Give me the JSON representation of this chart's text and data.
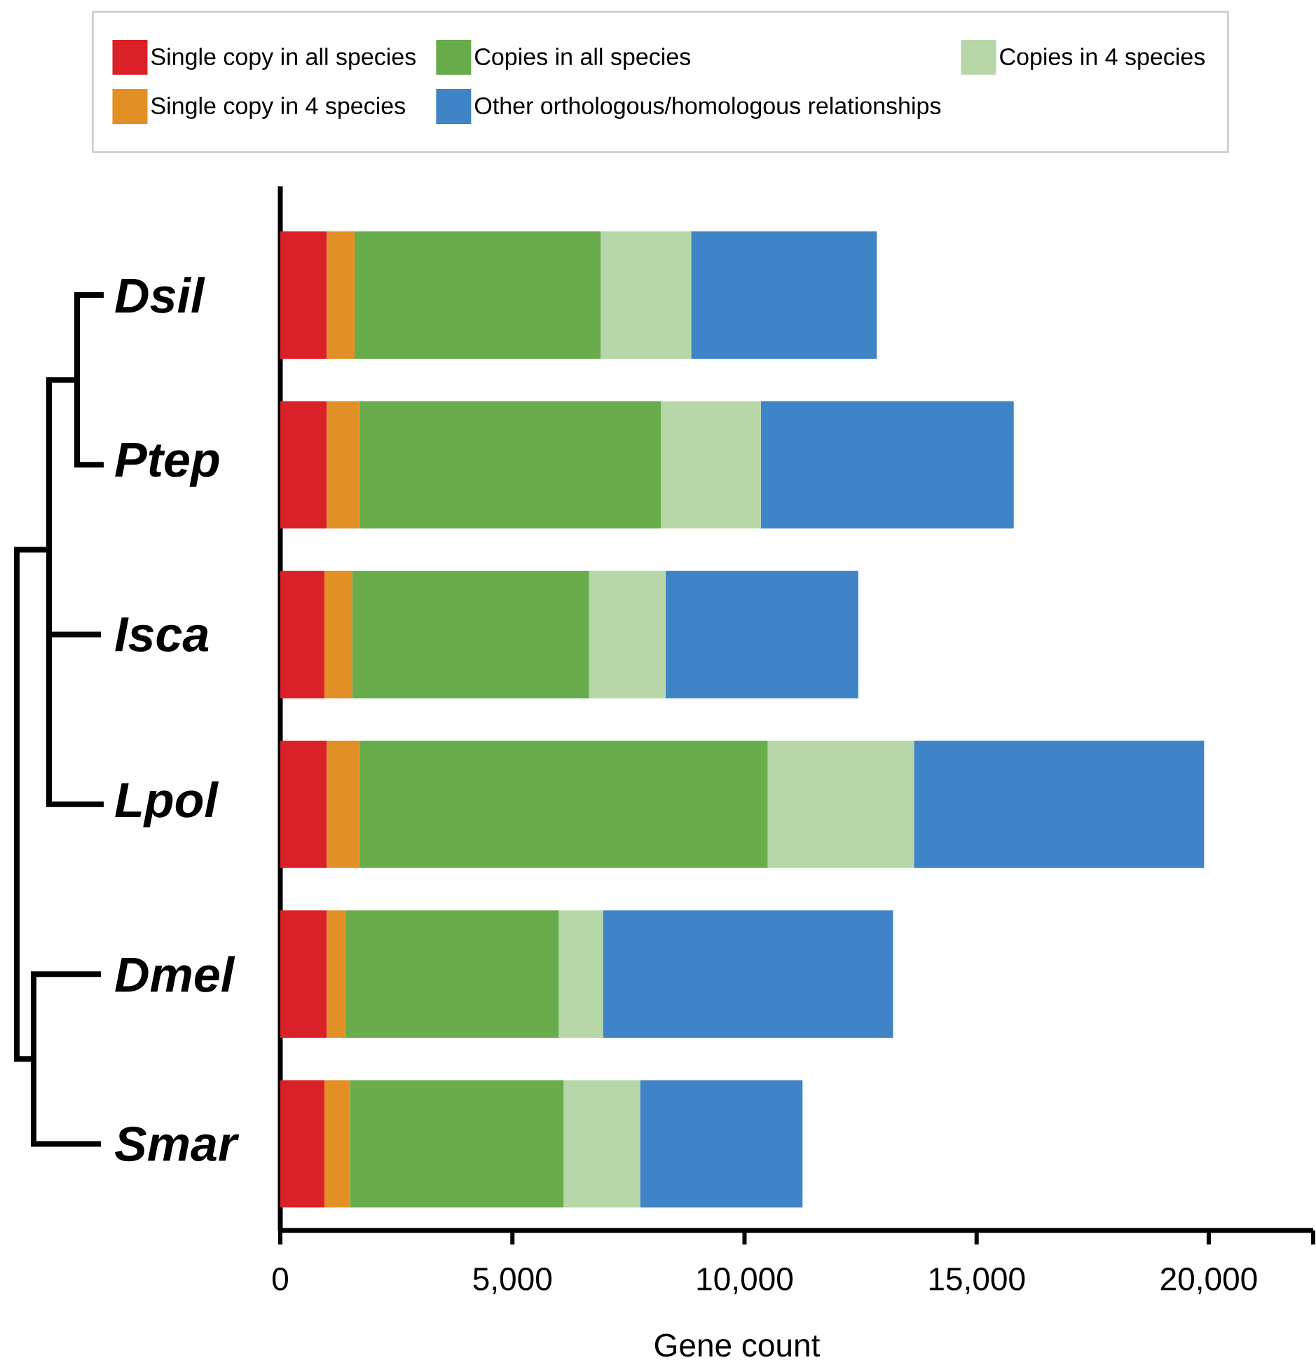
{
  "chart_data": {
    "type": "bar",
    "orientation": "horizontal",
    "stacked": true,
    "categories": [
      "Dsil",
      "Ptep",
      "Isca",
      "Lpol",
      "Dmel",
      "Smar"
    ],
    "series": [
      {
        "name": "Single copy in all species",
        "color": "#da2128",
        "values": [
          1000,
          1000,
          950,
          1000,
          1000,
          950
        ]
      },
      {
        "name": "Single copy in 4 species",
        "color": "#e29026",
        "values": [
          600,
          700,
          600,
          700,
          400,
          550
        ]
      },
      {
        "name": "Copies in all species",
        "color": "#68ac4c",
        "values": [
          5300,
          6500,
          5100,
          8800,
          4600,
          4600
        ]
      },
      {
        "name": "Copies in 4 species",
        "color": "#b7d7a8",
        "values": [
          1950,
          2150,
          1650,
          3150,
          950,
          1650
        ]
      },
      {
        "name": "Other orthologous/homologous relationships",
        "color": "#3f84c6",
        "values": [
          4000,
          5450,
          4150,
          6250,
          6250,
          3500
        ]
      }
    ],
    "xlabel": "Gene count",
    "xlim": [
      0,
      22250
    ],
    "xticks": [
      0,
      {
        "value": 5000,
        "label": "5,000"
      },
      {
        "value": 10000,
        "label": "10,000"
      },
      {
        "value": 15000,
        "label": "15,000"
      },
      {
        "value": 20000,
        "label": "20,000"
      },
      {
        "value": 22250,
        "label": null
      }
    ],
    "legend": "top"
  }
}
